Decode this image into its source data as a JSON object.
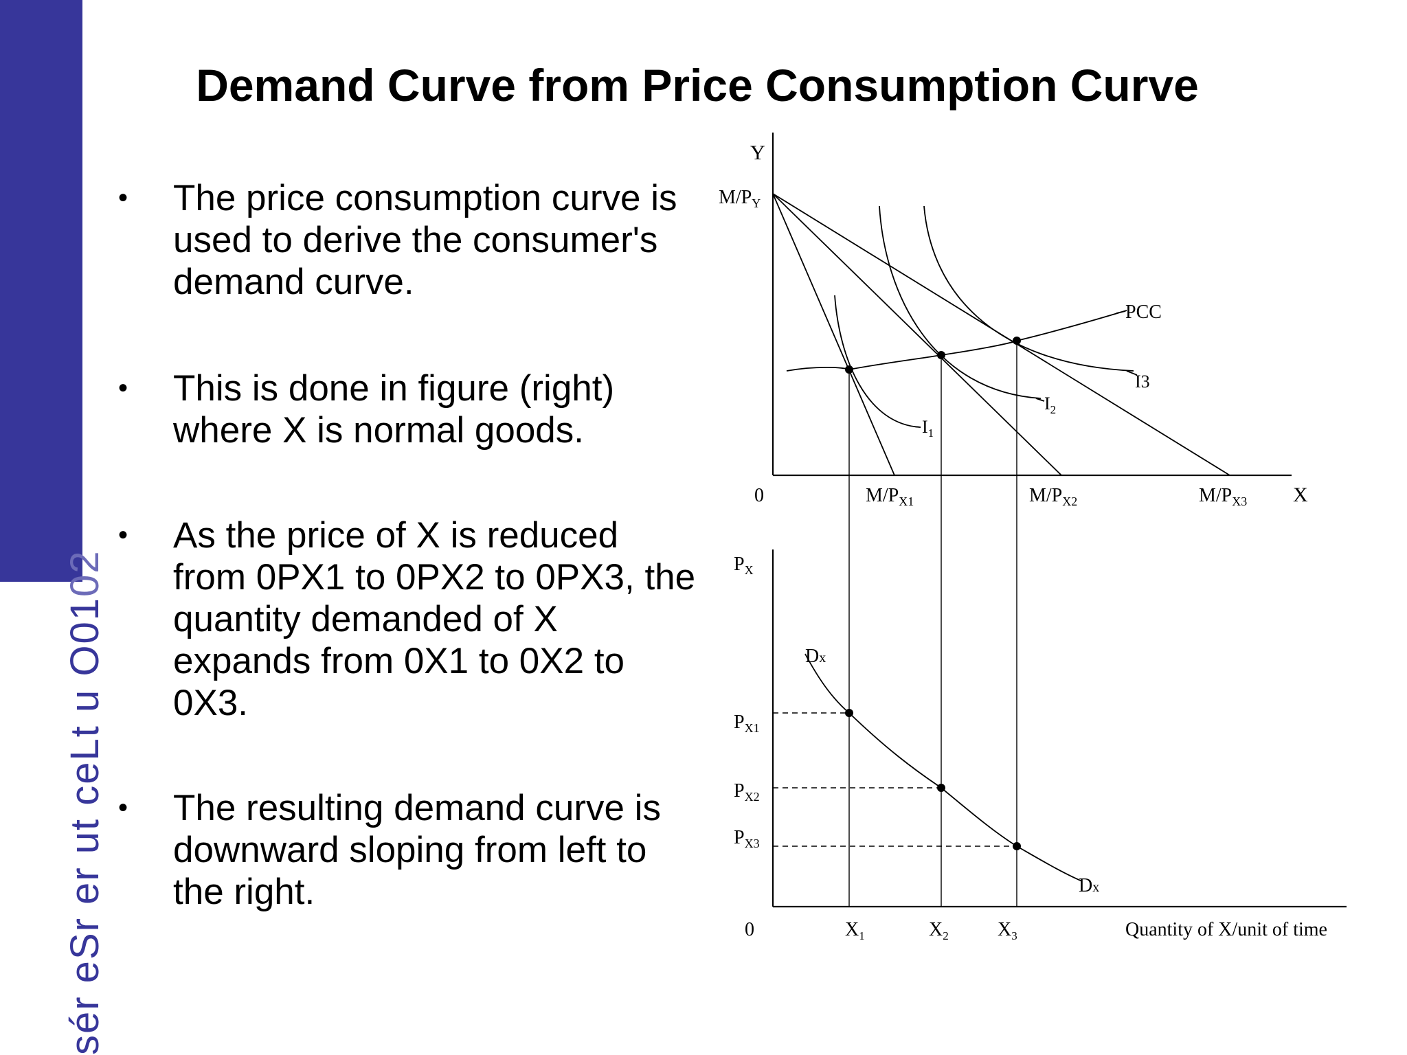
{
  "sidebar": {
    "vertical_text": "sér eSr er ut ceLt u O0102",
    "vertical_text_dark": "sér eSr er ut ceLt u O01",
    "vertical_text_light": "02",
    "color": "#37369a"
  },
  "title": "Demand Curve from Price Consumption Curve",
  "bullets": [
    "The price consumption curve is used to derive the consumer's demand curve.",
    "This is done in figure (right) where X is normal goods.",
    "As the price of X is reduced from 0PX1 to 0PX2 to 0PX3, the quantity demanded of X expands from 0X1 to 0X2 to 0X3.",
    "The resulting demand curve is downward sloping from left to the right."
  ],
  "top_diagram": {
    "y_axis_label": "Y",
    "x_axis_label": "X",
    "origin_label": "0",
    "intercept_y": {
      "main": "M/P",
      "sub": "Y"
    },
    "intercepts_x": [
      {
        "main": "M/P",
        "sub": "X1"
      },
      {
        "main": "M/P",
        "sub": "X2"
      },
      {
        "main": "M/P",
        "sub": "X3"
      }
    ],
    "indifference_curves": [
      {
        "main": "I",
        "sub": "1"
      },
      {
        "main": "I",
        "sub": "2"
      },
      {
        "main": "I3",
        "sub": ""
      }
    ],
    "pcc_label": "PCC"
  },
  "bottom_diagram": {
    "y_axis_label": {
      "main": "P",
      "sub": "X"
    },
    "origin_label": "0",
    "x_axis_label": "Quantity of X/unit of time",
    "price_labels": [
      {
        "main": "P",
        "sub": "X1"
      },
      {
        "main": "P",
        "sub": "X2"
      },
      {
        "main": "P",
        "sub": "X3"
      }
    ],
    "quantity_labels": [
      {
        "main": "X",
        "sub": "1"
      },
      {
        "main": "X",
        "sub": "2"
      },
      {
        "main": "X",
        "sub": "3"
      }
    ],
    "demand_label_top": {
      "main": "D",
      "sub": "x"
    },
    "demand_label_bottom": {
      "main": "D",
      "sub": "x"
    }
  }
}
